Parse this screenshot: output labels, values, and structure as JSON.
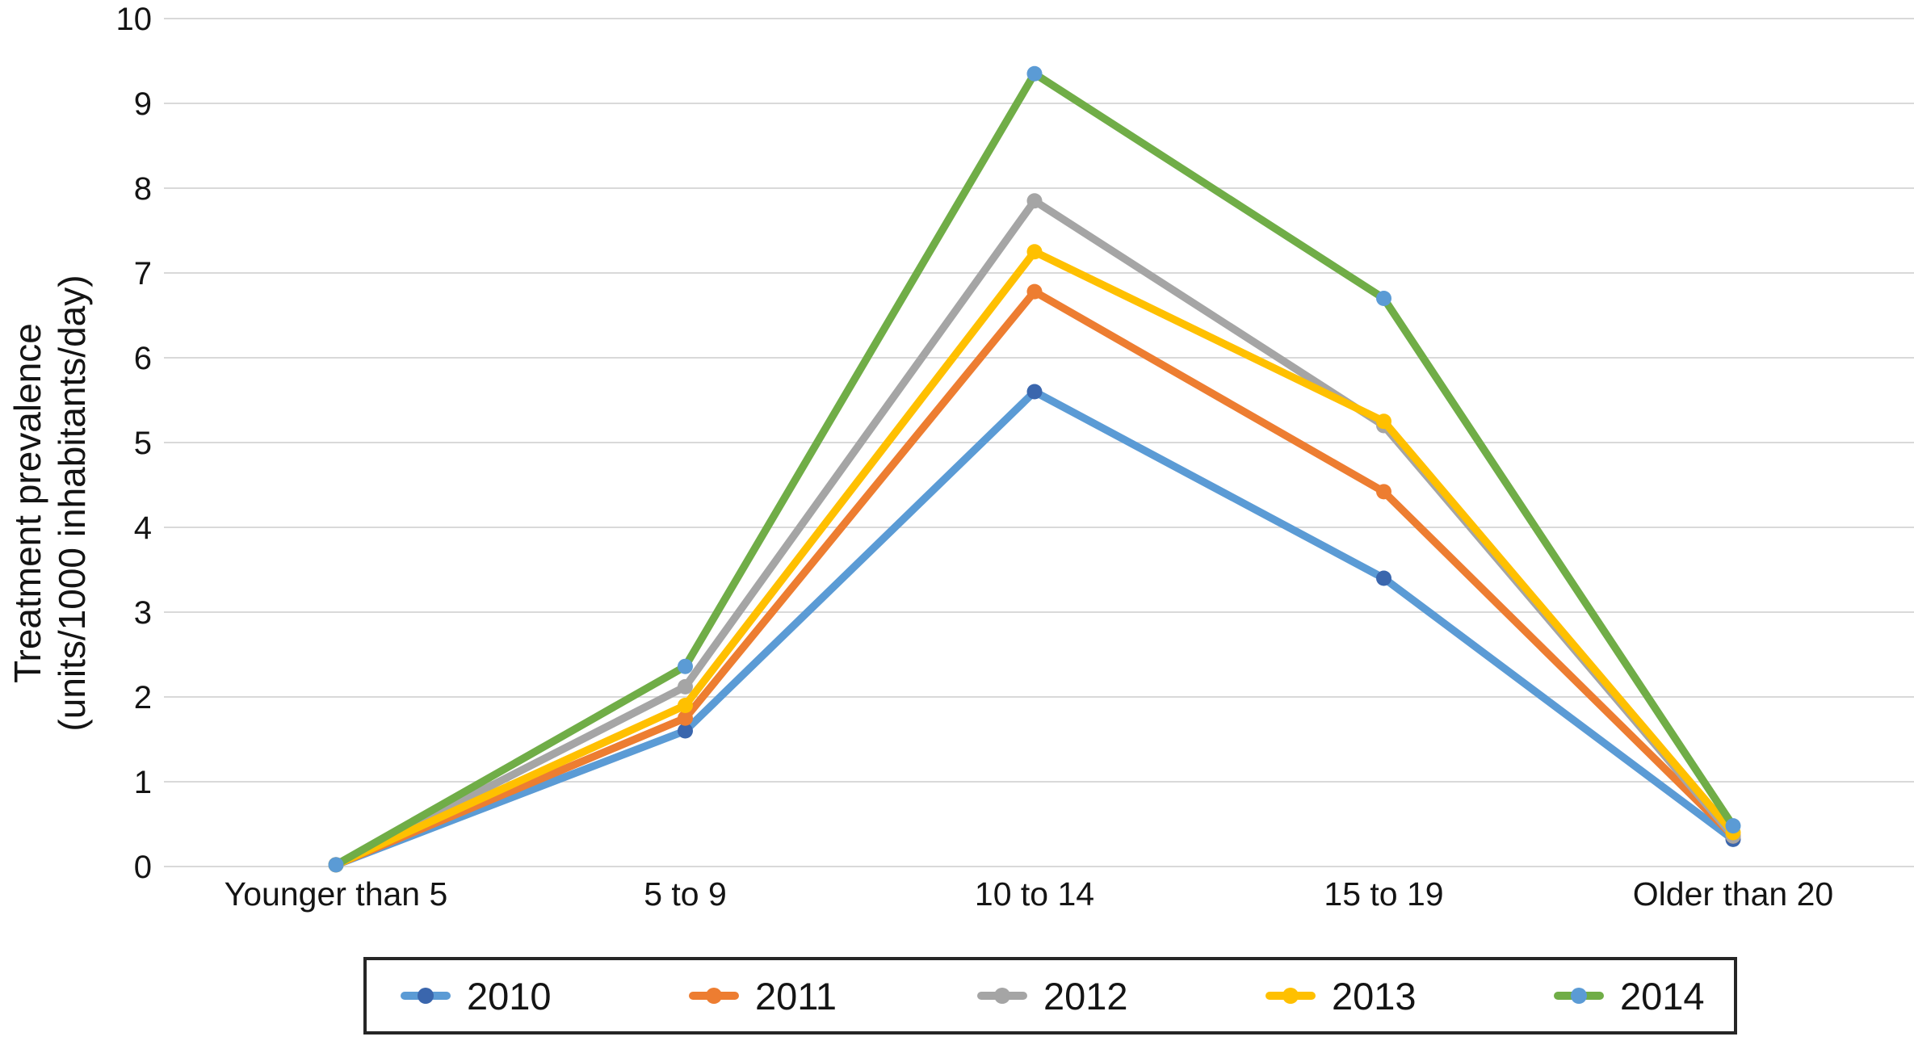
{
  "chart_data": {
    "type": "line",
    "title": "",
    "ylabel_line1": "Treatment prevalence",
    "ylabel_line2": "(units/1000 inhabitants/day)",
    "xlabel": "",
    "categories": [
      "Younger than 5",
      "5 to 9",
      "10 to 14",
      "15 to 19",
      "Older than 20"
    ],
    "series": [
      {
        "name": "2010",
        "color": "#5B9BD5",
        "marker_color": "#3A66AD",
        "values": [
          0.02,
          1.6,
          5.6,
          3.4,
          0.32
        ]
      },
      {
        "name": "2011",
        "color": "#ED7D31",
        "marker_color": "#ED7D31",
        "values": [
          0.02,
          1.75,
          6.78,
          4.42,
          0.36
        ]
      },
      {
        "name": "2012",
        "color": "#A5A5A5",
        "marker_color": "#A5A5A5",
        "values": [
          0.02,
          2.12,
          7.85,
          5.2,
          0.36
        ]
      },
      {
        "name": "2013",
        "color": "#FFC000",
        "marker_color": "#FFC000",
        "values": [
          0.02,
          1.9,
          7.25,
          5.25,
          0.4
        ]
      },
      {
        "name": "2014",
        "color": "#70AD47",
        "marker_color": "#5B9BD5",
        "values": [
          0.02,
          2.36,
          9.35,
          6.7,
          0.48
        ]
      }
    ],
    "y_ticks": [
      0,
      1,
      2,
      3,
      4,
      5,
      6,
      7,
      8,
      9,
      10
    ],
    "ylim": [
      0,
      10
    ],
    "grid": true,
    "legend_position": "bottom",
    "colors": {
      "gridline": "#D9D9D9",
      "text": "#141414",
      "legend_border": "#262626",
      "background": "#FFFFFF"
    }
  }
}
